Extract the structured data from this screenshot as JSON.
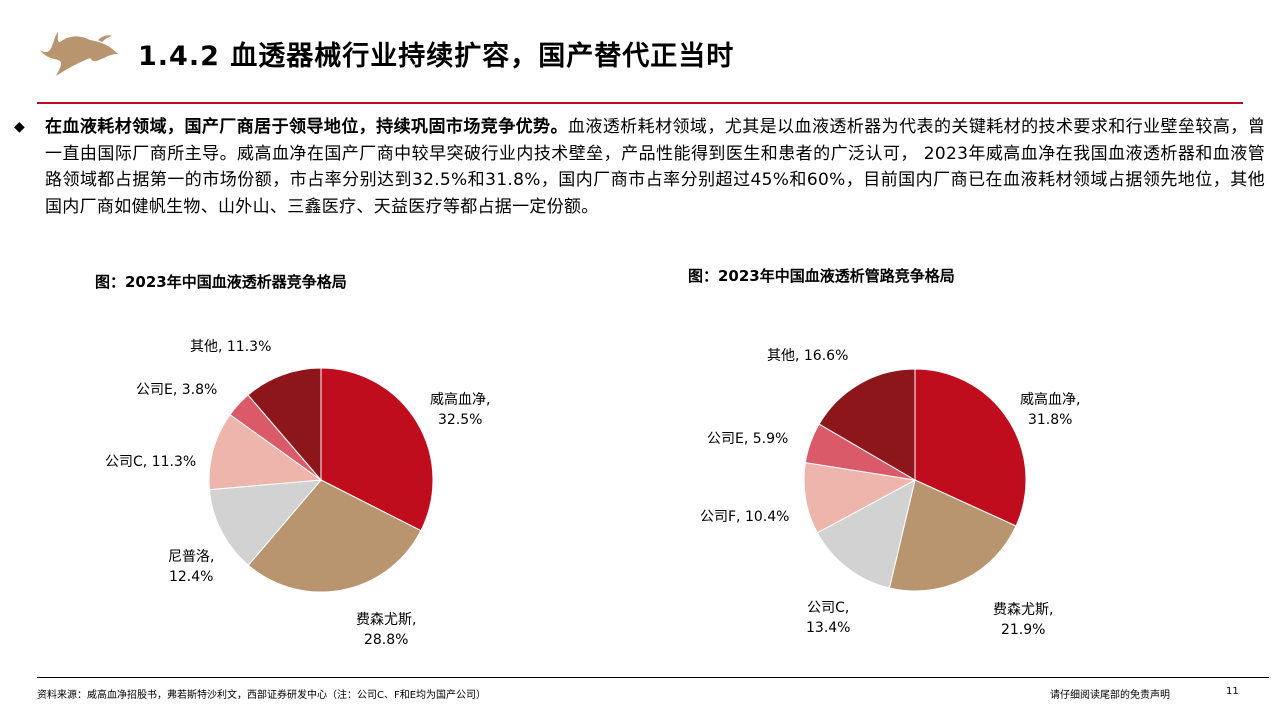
{
  "header": {
    "title": "1.4.2 血透器械行业持续扩容，国产替代正当时",
    "logo": "bull-logo"
  },
  "body": {
    "bold_lead": "在血液耗材领域，国产厂商居于领导地位，持续巩固市场竞争优势。",
    "text": "血液透析耗材领域，尤其是以血液透析器为代表的关键耗材的技术要求和行业壁垒较高，曾一直由国际厂商所主导。威高血净在国产厂商中较早突破行业内技术壁垒，产品性能得到医生和患者的广泛认可， 2023年威高血净在我国血液透析器和血液管路领域都占据第一的市场份额，市占率分别达到32.5%和31.8%，国内厂商市占率分别超过45%和60%，目前国内厂商已在血液耗材领域占据领先地位，其他国内厂商如健帆生物、山外山、三鑫医疗、天益医疗等都占据一定份额。"
  },
  "chart_data": [
    {
      "type": "pie",
      "title": "图：2023年中国血液透析器竞争格局",
      "categories": [
        "威高血净",
        "费森尤斯",
        "尼普洛",
        "公司C",
        "公司E",
        "其他"
      ],
      "values": [
        32.5,
        28.8,
        12.4,
        11.3,
        3.8,
        11.3
      ],
      "labels": [
        "威高血净,",
        "费森尤斯,",
        "尼普洛,",
        "公司C, 11.3%",
        "公司E, 3.8%",
        "其他, 11.3%"
      ],
      "value_labels": [
        "32.5%",
        "28.8%",
        "12.4%",
        "",
        "",
        ""
      ],
      "colors": [
        "#C00D1E",
        "#B9956F",
        "#D2D2D2",
        "#EDB5AB",
        "#DA5A6A",
        "#8C1619"
      ]
    },
    {
      "type": "pie",
      "title": "图：2023年中国血液透析管路竞争格局",
      "categories": [
        "威高血净",
        "费森尤斯",
        "公司C",
        "公司F",
        "公司E",
        "其他"
      ],
      "values": [
        31.8,
        21.9,
        13.4,
        10.4,
        5.9,
        16.6
      ],
      "labels": [
        "威高血净,",
        "费森尤斯,",
        "公司C,",
        "公司F, 10.4%",
        "公司E, 5.9%",
        "其他, 16.6%"
      ],
      "value_labels": [
        "31.8%",
        "21.9%",
        "13.4%",
        "",
        "",
        ""
      ],
      "colors": [
        "#C00D1E",
        "#B9956F",
        "#D2D2D2",
        "#EDB5AB",
        "#DA5A6A",
        "#8C1619"
      ]
    }
  ],
  "footer": {
    "source": "资料来源：威高血净招股书，弗若斯特沙利文，西部证券研发中心（注：公司C、F和E均为国产公司）",
    "disclaimer": "请仔细阅读尾部的免责声明",
    "page": "11"
  }
}
